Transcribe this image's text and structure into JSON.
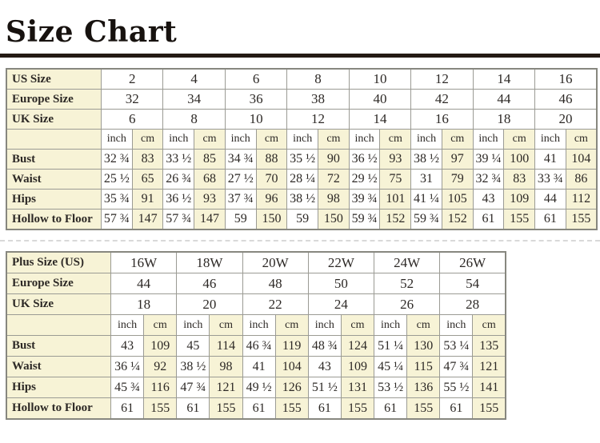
{
  "title": "Size Chart",
  "colors": {
    "cream_cell": "#f7f3d6",
    "white_cell": "#ffffff",
    "rule": "#241a13",
    "inner_border": "#9b9b94",
    "outer_border": "#87877f",
    "text": "#2d2926",
    "dashed_divider": "#d9d9d9"
  },
  "unit_labels": {
    "inch": "inch",
    "cm": "cm"
  },
  "standard_table": {
    "size_rows": [
      {
        "label": "US Size",
        "values": [
          "2",
          "4",
          "6",
          "8",
          "10",
          "12",
          "14",
          "16"
        ]
      },
      {
        "label": "Europe Size",
        "values": [
          "32",
          "34",
          "36",
          "38",
          "40",
          "42",
          "44",
          "46"
        ]
      },
      {
        "label": "UK Size",
        "values": [
          "6",
          "8",
          "10",
          "12",
          "14",
          "16",
          "18",
          "20"
        ]
      }
    ],
    "measure_rows": [
      {
        "label": "Bust",
        "pairs": [
          [
            "32 ¾",
            "83"
          ],
          [
            "33 ½",
            "85"
          ],
          [
            "34 ¾",
            "88"
          ],
          [
            "35 ½",
            "90"
          ],
          [
            "36 ½",
            "93"
          ],
          [
            "38 ½",
            "97"
          ],
          [
            "39 ¼",
            "100"
          ],
          [
            "41",
            "104"
          ]
        ]
      },
      {
        "label": "Waist",
        "pairs": [
          [
            "25 ½",
            "65"
          ],
          [
            "26 ¾",
            "68"
          ],
          [
            "27 ½",
            "70"
          ],
          [
            "28 ¼",
            "72"
          ],
          [
            "29 ½",
            "75"
          ],
          [
            "31",
            "79"
          ],
          [
            "32 ¾",
            "83"
          ],
          [
            "33 ¾",
            "86"
          ]
        ]
      },
      {
        "label": "Hips",
        "pairs": [
          [
            "35 ¾",
            "91"
          ],
          [
            "36 ½",
            "93"
          ],
          [
            "37 ¾",
            "96"
          ],
          [
            "38 ½",
            "98"
          ],
          [
            "39 ¾",
            "101"
          ],
          [
            "41 ¼",
            "105"
          ],
          [
            "43",
            "109"
          ],
          [
            "44",
            "112"
          ]
        ]
      },
      {
        "label": "Hollow to Floor",
        "pairs": [
          [
            "57 ¾",
            "147"
          ],
          [
            "57 ¾",
            "147"
          ],
          [
            "59",
            "150"
          ],
          [
            "59",
            "150"
          ],
          [
            "59 ¾",
            "152"
          ],
          [
            "59 ¾",
            "152"
          ],
          [
            "61",
            "155"
          ],
          [
            "61",
            "155"
          ]
        ]
      }
    ]
  },
  "plus_table": {
    "size_rows": [
      {
        "label": "Plus Size (US)",
        "values": [
          "16W",
          "18W",
          "20W",
          "22W",
          "24W",
          "26W"
        ]
      },
      {
        "label": "Europe Size",
        "values": [
          "44",
          "46",
          "48",
          "50",
          "52",
          "54"
        ]
      },
      {
        "label": "UK Size",
        "values": [
          "18",
          "20",
          "22",
          "24",
          "26",
          "28"
        ]
      }
    ],
    "measure_rows": [
      {
        "label": "Bust",
        "pairs": [
          [
            "43",
            "109"
          ],
          [
            "45",
            "114"
          ],
          [
            "46 ¾",
            "119"
          ],
          [
            "48 ¾",
            "124"
          ],
          [
            "51 ¼",
            "130"
          ],
          [
            "53 ¼",
            "135"
          ]
        ]
      },
      {
        "label": "Waist",
        "pairs": [
          [
            "36 ¼",
            "92"
          ],
          [
            "38 ½",
            "98"
          ],
          [
            "41",
            "104"
          ],
          [
            "43",
            "109"
          ],
          [
            "45 ¼",
            "115"
          ],
          [
            "47 ¾",
            "121"
          ]
        ]
      },
      {
        "label": "Hips",
        "pairs": [
          [
            "45 ¾",
            "116"
          ],
          [
            "47 ¾",
            "121"
          ],
          [
            "49 ½",
            "126"
          ],
          [
            "51 ½",
            "131"
          ],
          [
            "53 ½",
            "136"
          ],
          [
            "55 ½",
            "141"
          ]
        ]
      },
      {
        "label": "Hollow to Floor",
        "pairs": [
          [
            "61",
            "155"
          ],
          [
            "61",
            "155"
          ],
          [
            "61",
            "155"
          ],
          [
            "61",
            "155"
          ],
          [
            "61",
            "155"
          ],
          [
            "61",
            "155"
          ]
        ]
      }
    ]
  }
}
